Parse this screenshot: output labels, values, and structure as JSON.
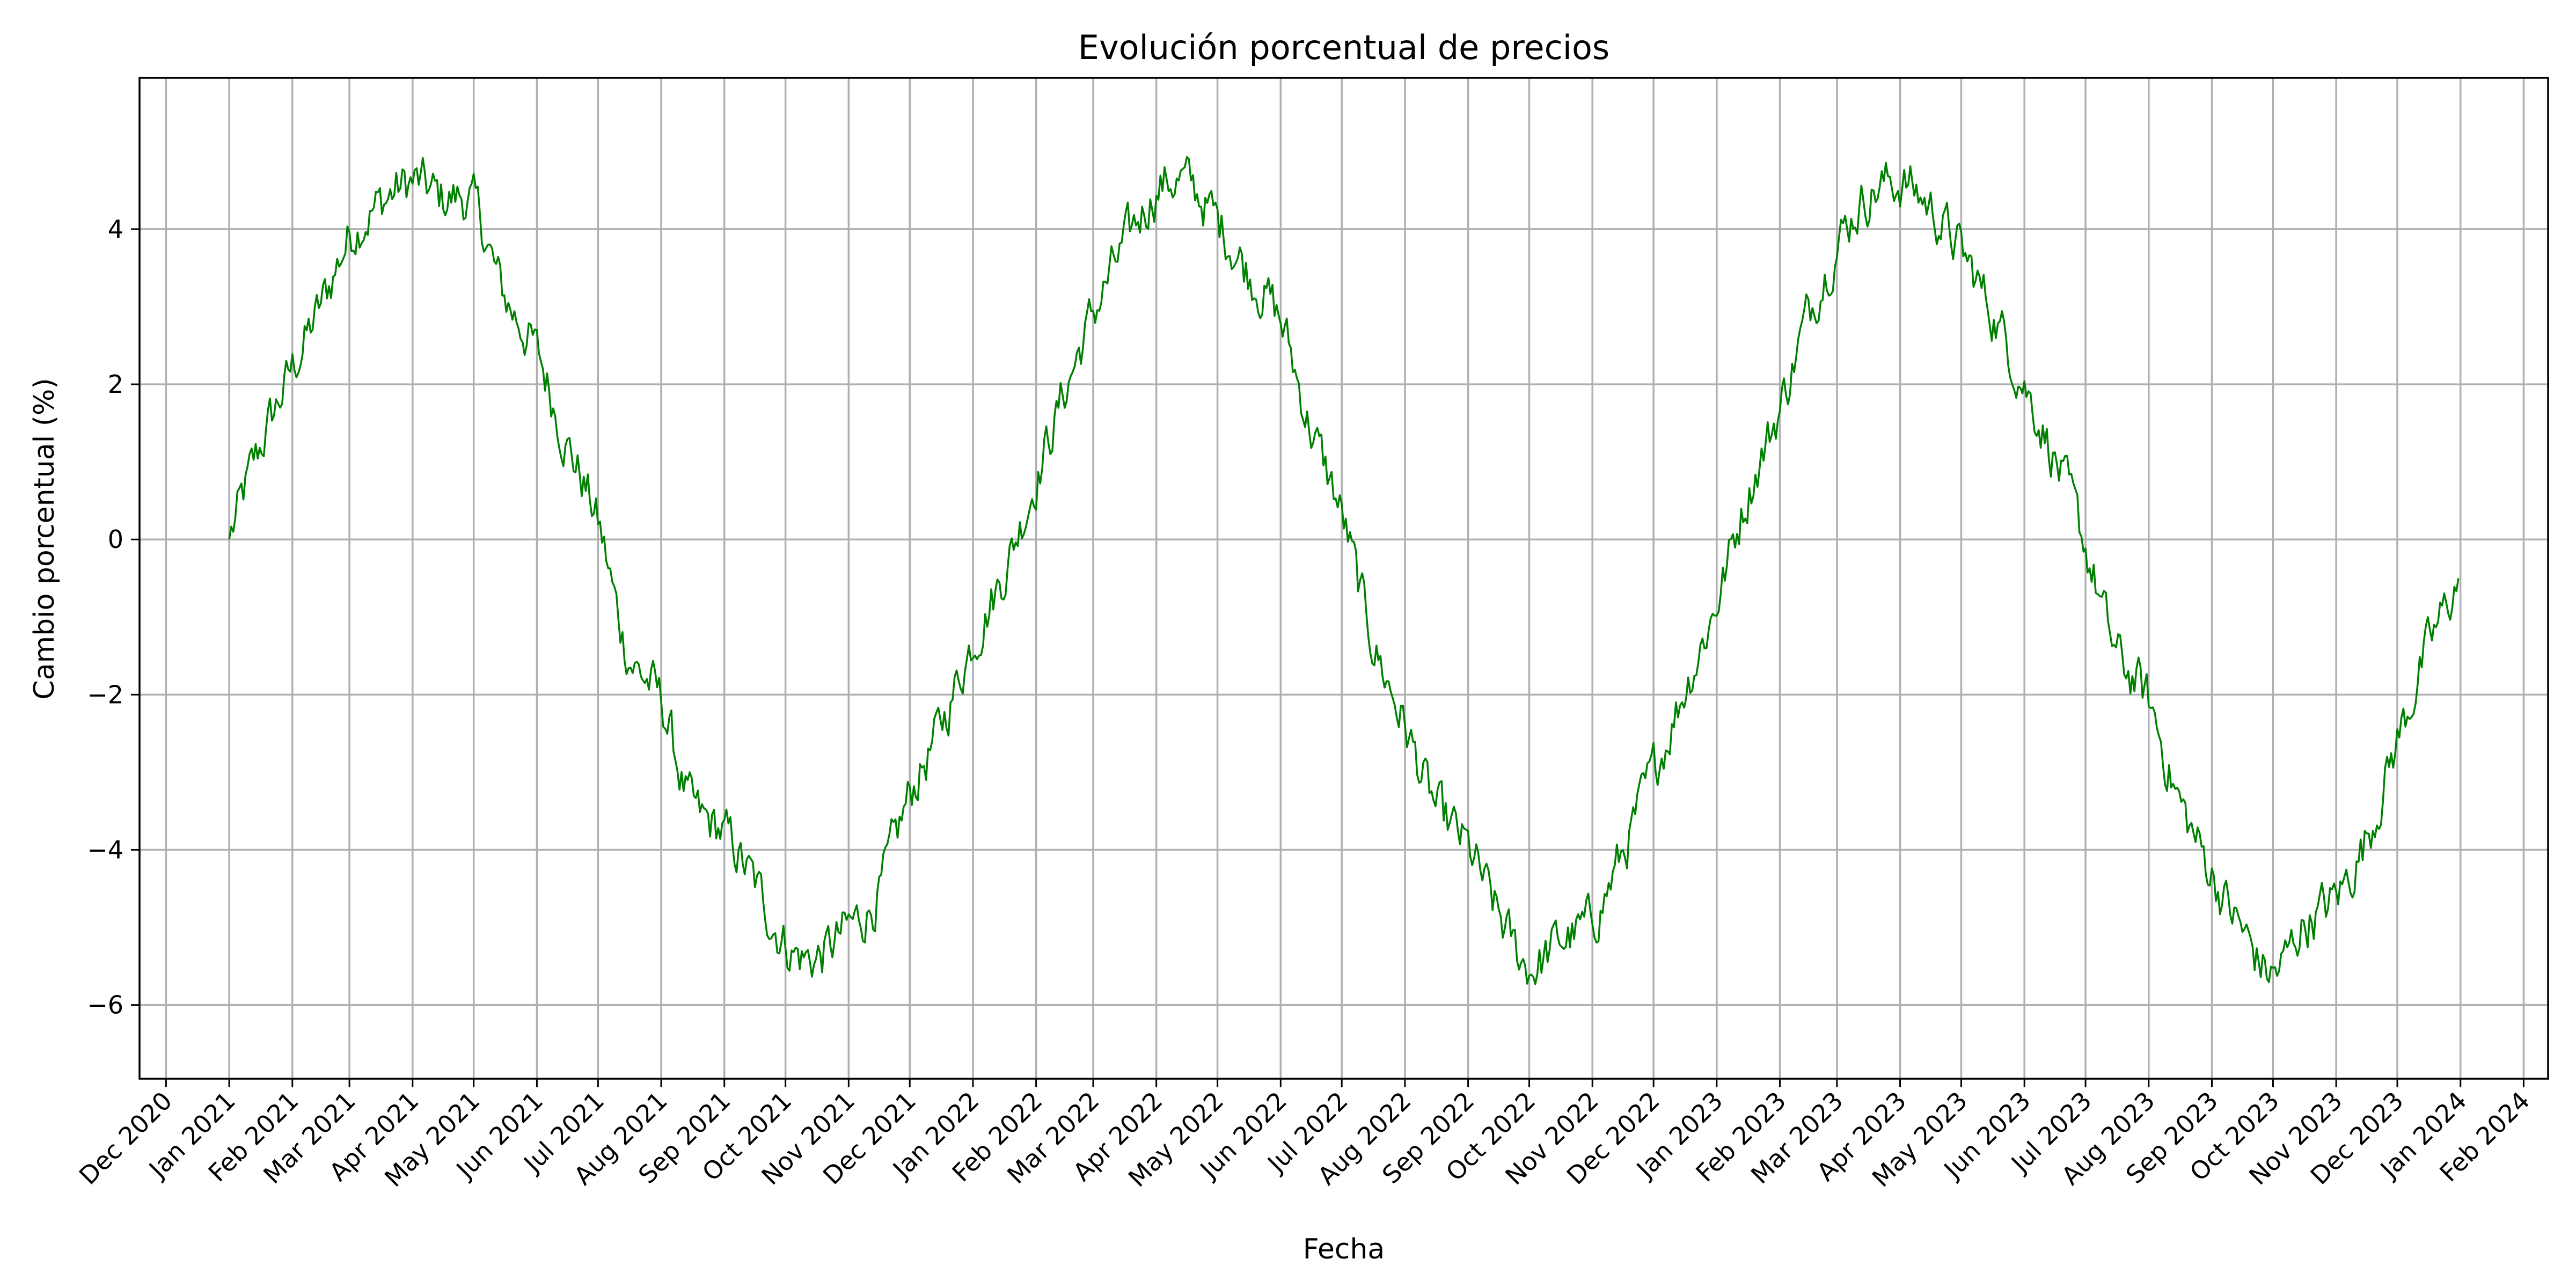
{
  "chart_data": {
    "type": "line",
    "title": "Evolución porcentual de precios",
    "xlabel": "Fecha",
    "ylabel": "Cambio porcentual (%)",
    "x_start": "2021-01-01",
    "x_end": "2023-12-31",
    "xlim": [
      "2020-11-18",
      "2024-02-13"
    ],
    "ylim": [
      -6.95,
      5.95
    ],
    "grid": true,
    "x_ticks": [
      "Dec 2020",
      "Jan 2021",
      "Feb 2021",
      "Mar 2021",
      "Apr 2021",
      "May 2021",
      "Jun 2021",
      "Jul 2021",
      "Aug 2021",
      "Sep 2021",
      "Oct 2021",
      "Nov 2021",
      "Dec 2021",
      "Jan 2022",
      "Feb 2022",
      "Mar 2022",
      "Apr 2022",
      "May 2022",
      "Jun 2022",
      "Jul 2022",
      "Aug 2022",
      "Sep 2022",
      "Oct 2022",
      "Nov 2022",
      "Dec 2022",
      "Jan 2023",
      "Feb 2023",
      "Mar 2023",
      "Apr 2023",
      "May 2023",
      "Jun 2023",
      "Jul 2023",
      "Aug 2023",
      "Sep 2023",
      "Oct 2023",
      "Nov 2023",
      "Dec 2023",
      "Jan 2024",
      "Feb 2024"
    ],
    "y_ticks": [
      -6,
      -4,
      -2,
      0,
      2,
      4
    ],
    "y_tick_labels": [
      "−6",
      "−4",
      "−2",
      "0",
      "2",
      "4"
    ],
    "series": [
      {
        "color": "#008000",
        "x": [
          "2021-01-01",
          "2021-01-15",
          "2021-02-01",
          "2021-02-15",
          "2021-03-01",
          "2021-03-15",
          "2021-04-01",
          "2021-04-15",
          "2021-05-01",
          "2021-05-15",
          "2021-06-01",
          "2021-06-15",
          "2021-07-01",
          "2021-07-15",
          "2021-08-01",
          "2021-08-15",
          "2021-09-01",
          "2021-09-15",
          "2021-10-01",
          "2021-10-15",
          "2021-11-01",
          "2021-11-15",
          "2021-12-01",
          "2021-12-15",
          "2022-01-01",
          "2022-01-15",
          "2022-02-01",
          "2022-02-15",
          "2022-03-01",
          "2022-03-15",
          "2022-04-01",
          "2022-04-15",
          "2022-05-01",
          "2022-05-15",
          "2022-06-01",
          "2022-06-15",
          "2022-07-01",
          "2022-07-15",
          "2022-08-01",
          "2022-08-15",
          "2022-09-01",
          "2022-09-15",
          "2022-10-01",
          "2022-10-15",
          "2022-11-01",
          "2022-11-15",
          "2022-12-01",
          "2022-12-15",
          "2023-01-01",
          "2023-01-15",
          "2023-02-01",
          "2023-02-15",
          "2023-03-01",
          "2023-03-15",
          "2023-04-01",
          "2023-04-15",
          "2023-05-01",
          "2023-05-15",
          "2023-06-01",
          "2023-06-15",
          "2023-07-01",
          "2023-07-15",
          "2023-08-01",
          "2023-08-15",
          "2023-09-01",
          "2023-09-15",
          "2023-10-01",
          "2023-10-15",
          "2023-11-01",
          "2023-11-15",
          "2023-12-01",
          "2023-12-15",
          "2023-12-31"
        ],
        "y": [
          0.0,
          1.1,
          2.2,
          3.0,
          3.9,
          4.3,
          4.6,
          4.4,
          4.3,
          3.2,
          2.4,
          1.3,
          0.2,
          -1.4,
          -2.1,
          -3.4,
          -3.8,
          -4.4,
          -5.2,
          -5.4,
          -5.0,
          -4.6,
          -3.3,
          -2.5,
          -1.3,
          -0.5,
          0.8,
          1.9,
          2.9,
          3.7,
          4.5,
          4.6,
          4.1,
          3.5,
          2.8,
          1.5,
          0.3,
          -1.2,
          -2.4,
          -3.4,
          -4.0,
          -4.8,
          -5.5,
          -5.2,
          -4.9,
          -4.1,
          -3.0,
          -2.0,
          -0.8,
          0.5,
          1.7,
          2.9,
          3.8,
          4.4,
          4.6,
          4.3,
          3.7,
          3.0,
          2.0,
          1.1,
          -0.1,
          -1.4,
          -2.1,
          -3.3,
          -4.3,
          -5.0,
          -5.6,
          -5.0,
          -4.6,
          -3.9,
          -2.6,
          -1.5,
          -0.5
        ]
      }
    ]
  }
}
